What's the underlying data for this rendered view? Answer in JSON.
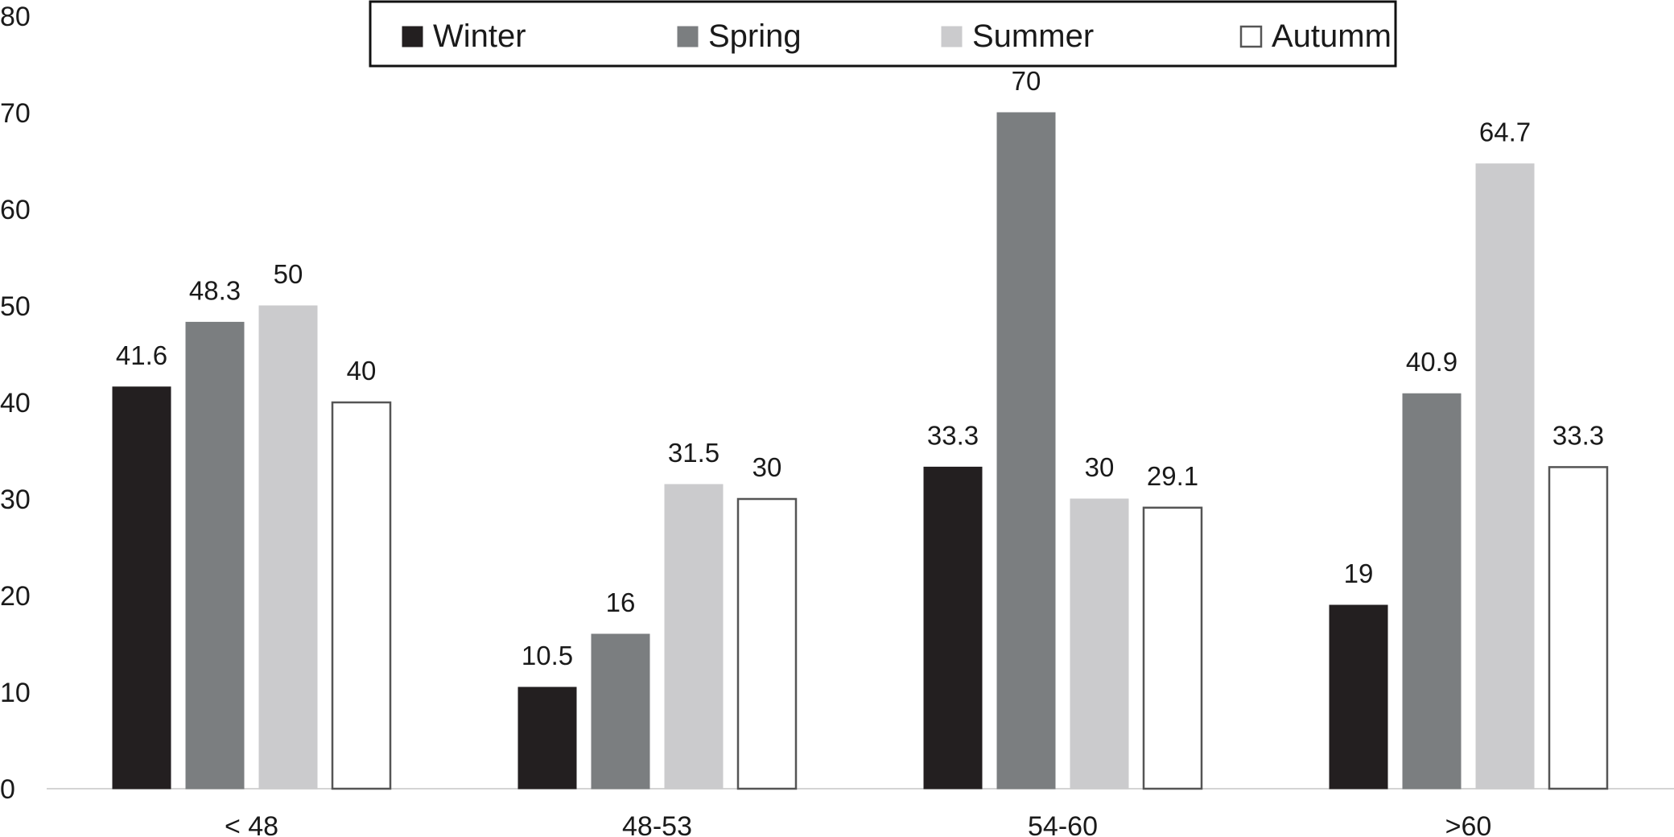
{
  "chart_data": {
    "type": "bar",
    "title": "",
    "xlabel": "",
    "ylabel": "",
    "categories": [
      "< 48",
      "48-53",
      "54-60",
      ">60"
    ],
    "series": [
      {
        "name": "Winter",
        "color": "#231f20",
        "values": [
          41.6,
          10.5,
          33.3,
          19
        ]
      },
      {
        "name": "Spring",
        "color": "#7b7e80",
        "values": [
          48.3,
          16,
          70,
          40.9
        ]
      },
      {
        "name": "Summer",
        "color": "#cbcbcd",
        "values": [
          50,
          31.5,
          30,
          64.7
        ]
      },
      {
        "name": "Autumm",
        "color": "#ffffff",
        "values": [
          40,
          30,
          29.1,
          33.3
        ]
      }
    ],
    "data_labels": [
      [
        "41.6",
        "10.5",
        "33.3",
        "19"
      ],
      [
        "48.3",
        "16",
        "70",
        "40.9"
      ],
      [
        "50",
        "31.5",
        "30",
        "64.7"
      ],
      [
        "40",
        "30",
        "29.1",
        "33.3"
      ]
    ],
    "ylim": [
      0,
      80
    ],
    "yticks": [
      0,
      10,
      20,
      30,
      40,
      50,
      60,
      70,
      80
    ],
    "ytick_labels": [
      "0",
      "10",
      "20",
      "30",
      "40",
      "50",
      "60",
      "70",
      "80"
    ],
    "grid": false,
    "legend_position": "top-center"
  }
}
